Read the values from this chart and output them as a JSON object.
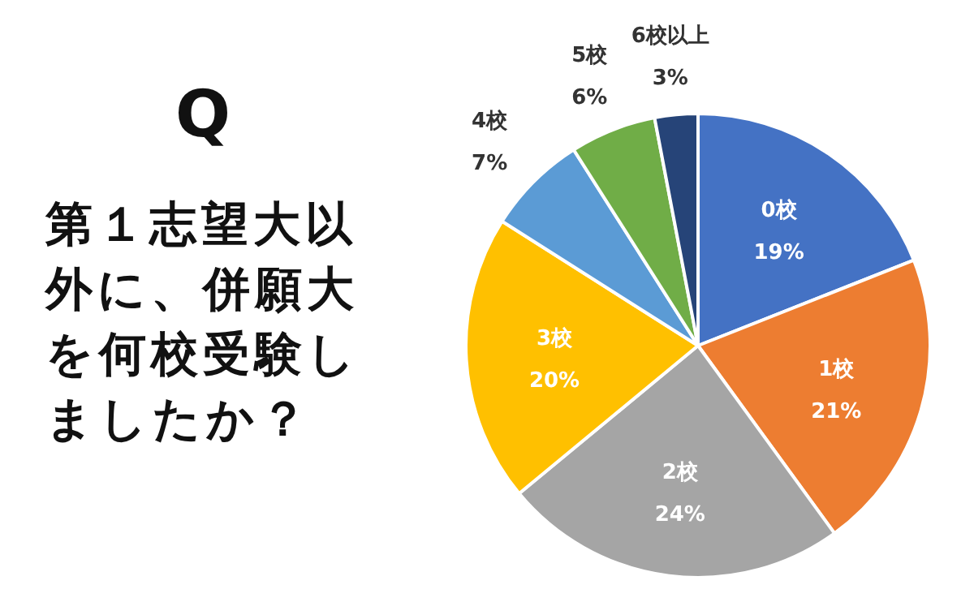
{
  "chart_data": {
    "type": "pie",
    "title": "Q",
    "subtitle": "第１志望大以外に、併願大を何校受験しましたか？",
    "categories": [
      "0校",
      "1校",
      "2校",
      "3校",
      "4校",
      "5校",
      "6校以上"
    ],
    "values": [
      19,
      21,
      24,
      20,
      7,
      6,
      3
    ],
    "value_labels": [
      "19%",
      "21%",
      "24%",
      "20%",
      "7%",
      "6%",
      "3%"
    ],
    "colors": [
      "#4472c4",
      "#ed7d31",
      "#a5a5a5",
      "#ffc000",
      "#5b9bd5",
      "#70ad47",
      "#264478"
    ]
  }
}
